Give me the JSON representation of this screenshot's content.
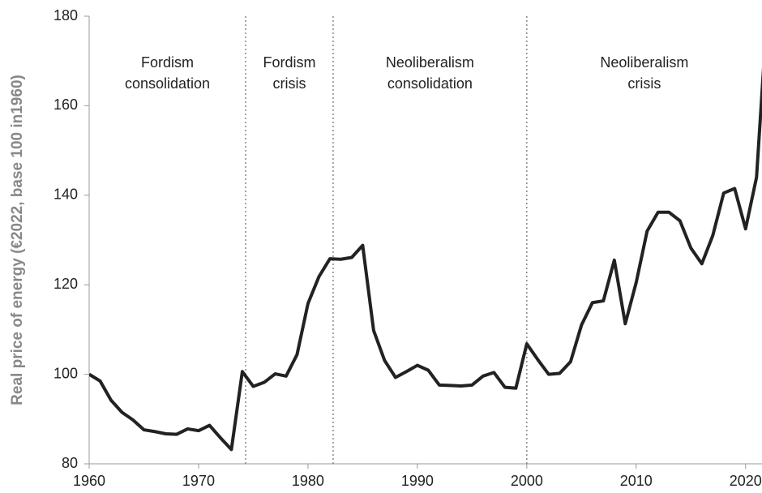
{
  "chart_data": {
    "type": "line",
    "y_label": "Real price of energy (€2022, base 100 in1960)",
    "x": [
      1960,
      1961,
      1962,
      1963,
      1964,
      1965,
      1966,
      1967,
      1968,
      1969,
      1970,
      1971,
      1972,
      1973,
      1974,
      1975,
      1976,
      1977,
      1978,
      1979,
      1980,
      1981,
      1982,
      1983,
      1984,
      1985,
      1986,
      1987,
      1988,
      1989,
      1990,
      1991,
      1992,
      1993,
      1994,
      1995,
      1996,
      1997,
      1998,
      1999,
      2000,
      2001,
      2002,
      2003,
      2004,
      2005,
      2006,
      2007,
      2008,
      2009,
      2010,
      2011,
      2012,
      2013,
      2014,
      2015,
      2016,
      2017,
      2018,
      2019,
      2020,
      2021,
      2022
    ],
    "series": [
      {
        "name": "Real price of energy",
        "color": "#222222",
        "values": [
          100,
          98.5,
          94.2,
          91.5,
          89.8,
          87.6,
          87.2,
          86.7,
          86.6,
          87.8,
          87.4,
          88.6,
          85.8,
          83.2,
          100.6,
          97.3,
          98.2,
          100.1,
          99.6,
          104.4,
          115.8,
          121.8,
          125.8,
          125.7,
          126.1,
          128.8,
          109.8,
          103.1,
          99.3,
          100.6,
          102,
          100.9,
          97.6,
          97.5,
          97.4,
          97.6,
          99.6,
          100.4,
          97.1,
          96.9,
          106.8,
          103.3,
          100,
          100.2,
          102.8,
          111,
          116,
          116.4,
          125.5,
          111.3,
          120.5,
          132,
          136.2,
          136.2,
          134.3,
          128.2,
          124.7,
          131,
          140.5,
          141.5,
          132.5,
          144,
          182
        ]
      }
    ],
    "xlim": [
      1960,
      2021.5
    ],
    "xticks": [
      1960,
      1970,
      1980,
      1990,
      2000,
      2010,
      2020
    ],
    "ylim": [
      80,
      180
    ],
    "yticks": [
      80,
      100,
      120,
      140,
      160,
      180
    ],
    "dividers": [
      1974.3,
      1982.3,
      2000
    ],
    "annotations": [
      {
        "text": [
          "Fordism",
          "consolidation"
        ]
      },
      {
        "text": [
          "Fordism",
          "crisis"
        ]
      },
      {
        "text": [
          "Neoliberalism",
          "consolidation"
        ]
      },
      {
        "text": [
          "Neoliberalism",
          "crisis"
        ]
      }
    ]
  }
}
